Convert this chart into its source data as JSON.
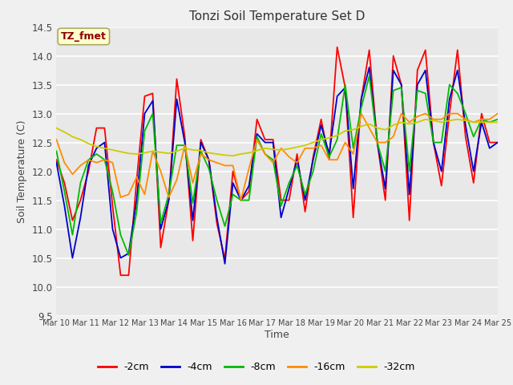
{
  "title": "Tonzi Soil Temperature Set D",
  "xlabel": "Time",
  "ylabel": "Soil Temperature (C)",
  "ylim": [
    9.5,
    14.5
  ],
  "annotation_text": "TZ_fmet",
  "annotation_color": "#8B0000",
  "annotation_bg": "#FFFFCC",
  "plot_bg_color": "#E8E8E8",
  "fig_bg_color": "#F0F0F0",
  "legend_labels": [
    "-2cm",
    "-4cm",
    "-8cm",
    "-16cm",
    "-32cm"
  ],
  "legend_colors": [
    "#FF0000",
    "#0000CC",
    "#00BB00",
    "#FF8C00",
    "#CCCC00"
  ],
  "x_tick_labels": [
    "Mar 10",
    "Mar 11",
    "Mar 12",
    "Mar 13",
    "Mar 14",
    "Mar 15",
    "Mar 16",
    "Mar 17",
    "Mar 18",
    "Mar 19",
    "Mar 20",
    "Mar 21",
    "Mar 22",
    "Mar 23",
    "Mar 24",
    "Mar 25"
  ],
  "series_2cm": [
    12.2,
    11.8,
    11.15,
    11.5,
    12.0,
    12.75,
    12.75,
    11.4,
    10.2,
    10.2,
    11.85,
    13.3,
    13.35,
    10.68,
    11.5,
    13.6,
    12.6,
    10.8,
    12.55,
    12.2,
    11.1,
    10.48,
    12.0,
    11.5,
    11.65,
    12.9,
    12.55,
    12.55,
    11.5,
    11.5,
    12.3,
    11.3,
    12.25,
    12.9,
    12.2,
    14.15,
    13.45,
    11.2,
    13.25,
    14.1,
    12.5,
    11.5,
    14.0,
    13.5,
    11.15,
    13.75,
    14.1,
    12.5,
    11.75,
    13.0,
    14.1,
    12.6,
    11.8,
    13.0,
    12.5,
    12.5
  ],
  "series_4cm": [
    12.15,
    11.4,
    10.5,
    11.2,
    12.1,
    12.4,
    12.5,
    11.0,
    10.5,
    10.58,
    11.5,
    13.0,
    13.22,
    11.0,
    11.5,
    13.25,
    12.5,
    11.15,
    12.5,
    12.2,
    11.2,
    10.4,
    11.8,
    11.5,
    11.75,
    12.65,
    12.5,
    12.5,
    11.2,
    11.7,
    12.2,
    11.5,
    12.2,
    12.8,
    12.3,
    13.3,
    13.45,
    11.7,
    13.25,
    13.8,
    12.5,
    11.7,
    13.75,
    13.5,
    11.6,
    13.5,
    13.75,
    12.5,
    12.0,
    13.25,
    13.75,
    12.8,
    12.0,
    12.85,
    12.4,
    12.5
  ],
  "series_8cm": [
    12.35,
    11.65,
    10.9,
    11.8,
    12.2,
    12.3,
    12.2,
    11.65,
    10.9,
    10.55,
    11.3,
    12.7,
    13.0,
    11.1,
    11.6,
    12.45,
    12.45,
    11.45,
    12.35,
    12.05,
    11.5,
    11.05,
    11.6,
    11.5,
    11.5,
    12.6,
    12.3,
    12.2,
    11.4,
    11.8,
    12.1,
    11.6,
    12.0,
    12.65,
    12.25,
    12.55,
    13.5,
    12.4,
    13.1,
    13.65,
    12.5,
    12.0,
    13.4,
    13.45,
    12.0,
    13.4,
    13.35,
    12.5,
    12.5,
    13.5,
    13.35,
    13.0,
    12.6,
    12.9,
    12.85,
    12.9
  ],
  "series_16cm": [
    12.55,
    12.15,
    11.95,
    12.1,
    12.2,
    12.15,
    12.2,
    12.15,
    11.55,
    11.6,
    11.9,
    11.6,
    12.35,
    12.0,
    11.55,
    11.85,
    12.45,
    11.8,
    12.3,
    12.2,
    12.15,
    12.1,
    12.1,
    11.5,
    12.05,
    12.55,
    12.3,
    12.15,
    12.4,
    12.25,
    12.15,
    12.4,
    12.4,
    12.45,
    12.2,
    12.2,
    12.5,
    12.3,
    13.0,
    12.75,
    12.5,
    12.5,
    12.6,
    13.0,
    12.85,
    12.95,
    13.0,
    12.9,
    12.9,
    13.0,
    13.0,
    12.9,
    12.85,
    12.9,
    12.9,
    13.0
  ],
  "series_32cm": [
    12.75,
    12.68,
    12.6,
    12.55,
    12.48,
    12.43,
    12.4,
    12.37,
    12.34,
    12.31,
    12.3,
    12.32,
    12.35,
    12.33,
    12.31,
    12.35,
    12.4,
    12.37,
    12.36,
    12.32,
    12.3,
    12.28,
    12.27,
    12.3,
    12.32,
    12.36,
    12.4,
    12.38,
    12.37,
    12.39,
    12.42,
    12.45,
    12.5,
    12.55,
    12.58,
    12.62,
    12.7,
    12.72,
    12.78,
    12.82,
    12.75,
    12.72,
    12.8,
    12.85,
    12.82,
    12.85,
    12.9,
    12.88,
    12.85,
    12.88,
    12.9,
    12.88,
    12.85,
    12.85,
    12.85,
    12.85
  ]
}
